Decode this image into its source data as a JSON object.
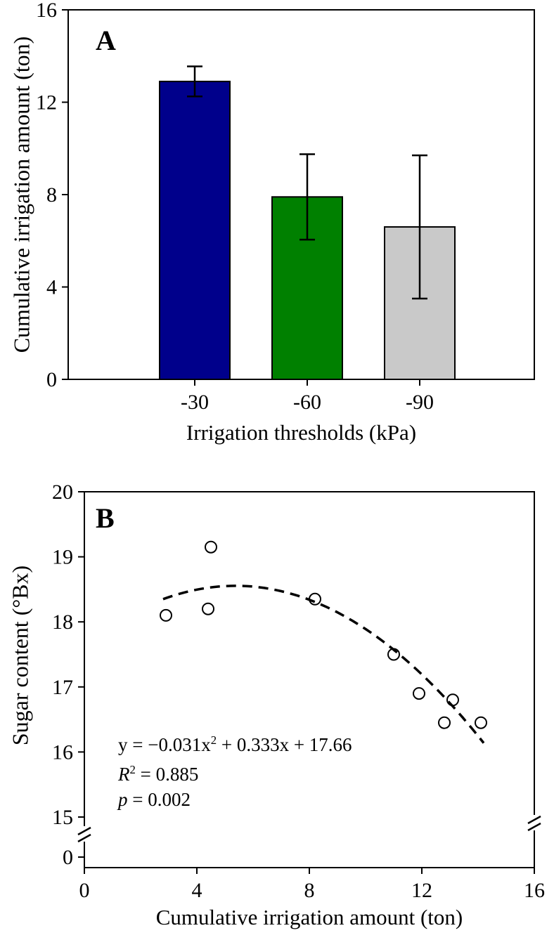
{
  "figure": {
    "background": "#ffffff",
    "axis_color": "#000000"
  },
  "chart_data": [
    {
      "type": "bar",
      "panel_label": "A",
      "title": "",
      "xlabel": "Irrigation thresholds (kPa)",
      "ylabel": "Cumulative irrigation amount (ton)",
      "categories": [
        "-30",
        "-60",
        "-90"
      ],
      "values": [
        12.9,
        7.9,
        6.6
      ],
      "errors": [
        0.65,
        1.85,
        3.1
      ],
      "bar_colors": [
        "#00008b",
        "#008000",
        "#c9c9c9"
      ],
      "bar_edge_color": "#000000",
      "ylim": [
        0,
        16
      ],
      "yticks": [
        0,
        4,
        8,
        12,
        16
      ],
      "grid": false,
      "legend": "none"
    },
    {
      "type": "scatter",
      "panel_label": "B",
      "title": "",
      "xlabel": "Cumulative irrigation amount (ton)",
      "ylabel": "Sugar content (°Bx)",
      "marker": "open-circle",
      "points_x": [
        2.9,
        4.4,
        4.5,
        8.2,
        11.0,
        11.9,
        12.8,
        13.1,
        14.1
      ],
      "points_y": [
        18.1,
        18.2,
        19.15,
        18.35,
        17.5,
        16.9,
        16.45,
        16.8,
        16.45
      ],
      "fit": {
        "model": "quadratic",
        "a": -0.031,
        "b": 0.333,
        "c": 17.66,
        "x_start": 2.8,
        "x_end": 14.2,
        "line_style": "dashed",
        "color": "#000000"
      },
      "equation": {
        "prefix": "y = −0.031x",
        "sup": "2",
        "suffix": " + 0.333x + 17.66"
      },
      "r_squared": {
        "label": "R",
        "sup": "2",
        "value": " = 0.885"
      },
      "p_value": {
        "label": "p",
        "value": " = 0.002"
      },
      "xlim": [
        0,
        16
      ],
      "xticks": [
        0,
        4,
        8,
        12,
        16
      ],
      "ylim": [
        15,
        20
      ],
      "yticks": [
        15,
        16,
        17,
        18,
        19,
        20
      ],
      "axis_break": {
        "enabled": true,
        "lower_tick": "0"
      },
      "grid": false,
      "legend": "none"
    }
  ]
}
